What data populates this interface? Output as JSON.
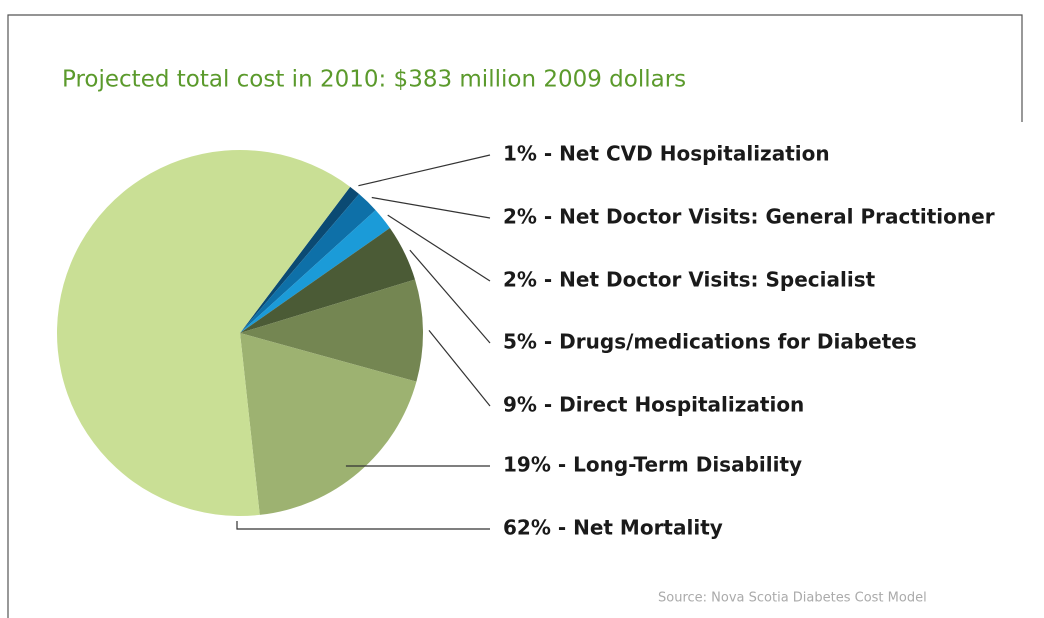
{
  "chart_data": {
    "type": "pie",
    "title": "Projected total cost in 2010: $383 million 2009 dollars",
    "source": "Source: Nova Scotia Diabetes Cost Model",
    "values": [
      1,
      2,
      2,
      5,
      9,
      19,
      62
    ],
    "value_labels": [
      "1% - Net CVD Hospitalization",
      "2% - Net Doctor Visits: General Practitioner",
      "2% - Net Doctor Visits: Specialist",
      "5% - Drugs/medications for Diabetes",
      "9% - Direct Hospitalization",
      "19% - Long-Term Disability",
      "62% - Net Mortality"
    ],
    "colors": [
      "#0b4a73",
      "#0e70a8",
      "#1b9bd8",
      "#4b5b36",
      "#748652",
      "#9db271",
      "#c9df95"
    ]
  }
}
